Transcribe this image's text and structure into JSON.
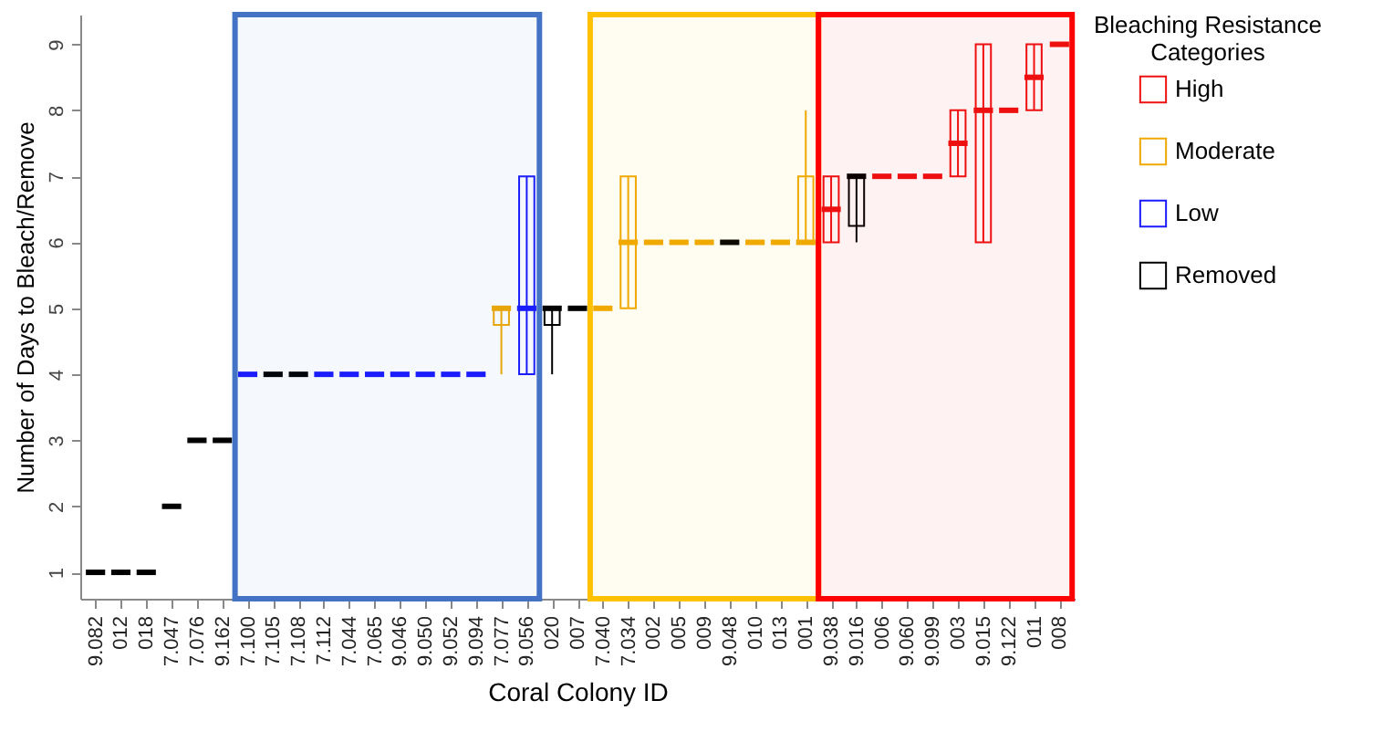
{
  "chart_data": {
    "type": "box",
    "xlabel": "Coral Colony ID",
    "ylabel": "Number of Days to Bleach/Remove",
    "legend_title": "Bleaching Resistance Categories",
    "legend": "right",
    "grid": false,
    "categories": [
      "9.082",
      "012",
      "018",
      "7.047",
      "7.076",
      "9.162",
      "7.100",
      "7.105",
      "7.108",
      "7.112",
      "7.044",
      "7.065",
      "9.046",
      "9.050",
      "9.052",
      "9.094",
      "7.077",
      "9.056",
      "020",
      "007",
      "7.040",
      "7.034",
      "002",
      "005",
      "009",
      "9.048",
      "010",
      "013",
      "001",
      "9.038",
      "9.016",
      "006",
      "9.060",
      "9.099",
      "003",
      "9.015",
      "9.122",
      "011",
      "008"
    ],
    "ylim": [
      0.6,
      9.45
    ],
    "yticks": [
      1,
      2,
      3,
      4,
      5,
      6,
      7,
      8,
      9
    ],
    "series": [
      {
        "name": "High",
        "color": "#ee1111",
        "boxes": [
          null,
          null,
          null,
          null,
          null,
          null,
          null,
          null,
          null,
          null,
          null,
          null,
          null,
          null,
          null,
          null,
          null,
          null,
          null,
          null,
          null,
          null,
          null,
          null,
          null,
          null,
          null,
          null,
          null,
          {
            "low": 6,
            "q1": 6,
            "median": 6.5,
            "q3": 7,
            "high": 7
          },
          null,
          {
            "low": 7,
            "q1": 7,
            "median": 7,
            "q3": 7,
            "high": 7
          },
          {
            "low": 7,
            "q1": 7,
            "median": 7,
            "q3": 7,
            "high": 7
          },
          {
            "low": 7,
            "q1": 7,
            "median": 7,
            "q3": 7,
            "high": 7
          },
          {
            "low": 7,
            "q1": 7,
            "median": 7.5,
            "q3": 8,
            "high": 8
          },
          {
            "low": 6,
            "q1": 6,
            "median": 8,
            "q3": 9,
            "high": 9
          },
          {
            "low": 8,
            "q1": 8,
            "median": 8,
            "q3": 8,
            "high": 8
          },
          {
            "low": 8,
            "q1": 8,
            "median": 8.5,
            "q3": 9,
            "high": 9
          },
          {
            "low": 9,
            "q1": 9,
            "median": 9,
            "q3": 9,
            "high": 9
          }
        ]
      },
      {
        "name": "Moderate",
        "color": "#f0a800",
        "boxes": [
          null,
          null,
          null,
          null,
          null,
          null,
          null,
          null,
          null,
          null,
          null,
          null,
          null,
          null,
          null,
          null,
          {
            "low": 4,
            "q1": 4.75,
            "median": 5,
            "q3": 5,
            "high": 5
          },
          null,
          null,
          null,
          {
            "low": 5,
            "q1": 5,
            "median": 5,
            "q3": 5,
            "high": 5
          },
          {
            "low": 5,
            "q1": 5,
            "median": 6,
            "q3": 7,
            "high": 7
          },
          {
            "low": 6,
            "q1": 6,
            "median": 6,
            "q3": 6,
            "high": 6
          },
          {
            "low": 6,
            "q1": 6,
            "median": 6,
            "q3": 6,
            "high": 6
          },
          {
            "low": 6,
            "q1": 6,
            "median": 6,
            "q3": 6,
            "high": 6
          },
          null,
          {
            "low": 6,
            "q1": 6,
            "median": 6,
            "q3": 6,
            "high": 6
          },
          {
            "low": 6,
            "q1": 6,
            "median": 6,
            "q3": 6,
            "high": 6
          },
          {
            "low": 6,
            "q1": 6,
            "median": 6,
            "q3": 7,
            "high": 8
          },
          null,
          null,
          null,
          null,
          null,
          null,
          null,
          null,
          null,
          null
        ]
      },
      {
        "name": "Low",
        "color": "#1a1aff",
        "boxes": [
          null,
          null,
          null,
          null,
          null,
          null,
          {
            "low": 4,
            "q1": 4,
            "median": 4,
            "q3": 4,
            "high": 4
          },
          null,
          null,
          {
            "low": 4,
            "q1": 4,
            "median": 4,
            "q3": 4,
            "high": 4
          },
          {
            "low": 4,
            "q1": 4,
            "median": 4,
            "q3": 4,
            "high": 4
          },
          {
            "low": 4,
            "q1": 4,
            "median": 4,
            "q3": 4,
            "high": 4
          },
          {
            "low": 4,
            "q1": 4,
            "median": 4,
            "q3": 4,
            "high": 4
          },
          {
            "low": 4,
            "q1": 4,
            "median": 4,
            "q3": 4,
            "high": 4
          },
          {
            "low": 4,
            "q1": 4,
            "median": 4,
            "q3": 4,
            "high": 4
          },
          {
            "low": 4,
            "q1": 4,
            "median": 4,
            "q3": 4,
            "high": 4
          },
          null,
          {
            "low": 4,
            "q1": 4,
            "median": 5,
            "q3": 7,
            "high": 7
          },
          null,
          null,
          null,
          null,
          null,
          null,
          null,
          null,
          null,
          null,
          null,
          null,
          null,
          null,
          null,
          null,
          null,
          null,
          null,
          null,
          null
        ]
      },
      {
        "name": "Removed",
        "color": "#000000",
        "boxes": [
          {
            "low": 1,
            "q1": 1,
            "median": 1,
            "q3": 1,
            "high": 1
          },
          {
            "low": 1,
            "q1": 1,
            "median": 1,
            "q3": 1,
            "high": 1
          },
          {
            "low": 1,
            "q1": 1,
            "median": 1,
            "q3": 1,
            "high": 1
          },
          {
            "low": 2,
            "q1": 2,
            "median": 2,
            "q3": 2,
            "high": 2
          },
          {
            "low": 3,
            "q1": 3,
            "median": 3,
            "q3": 3,
            "high": 3
          },
          {
            "low": 3,
            "q1": 3,
            "median": 3,
            "q3": 3,
            "high": 3
          },
          null,
          {
            "low": 4,
            "q1": 4,
            "median": 4,
            "q3": 4,
            "high": 4
          },
          {
            "low": 4,
            "q1": 4,
            "median": 4,
            "q3": 4,
            "high": 4
          },
          null,
          null,
          null,
          null,
          null,
          null,
          null,
          null,
          null,
          {
            "low": 4,
            "q1": 4.75,
            "median": 5,
            "q3": 5,
            "high": 5
          },
          {
            "low": 5,
            "q1": 5,
            "median": 5,
            "q3": 5,
            "high": 5
          },
          null,
          null,
          null,
          null,
          null,
          {
            "low": 6,
            "q1": 6,
            "median": 6,
            "q3": 6,
            "high": 6
          },
          null,
          null,
          null,
          null,
          {
            "low": 6,
            "q1": 6.25,
            "median": 7,
            "q3": 7,
            "high": 7
          },
          null,
          null,
          null,
          null,
          null,
          null,
          null,
          null
        ]
      }
    ],
    "bands": [
      {
        "axis": "x",
        "from": "7.100",
        "to": "9.056",
        "label": null,
        "color": "#4472c4"
      },
      {
        "axis": "x",
        "from": "7.040",
        "to": "001",
        "label": null,
        "color": "#ffc000"
      },
      {
        "axis": "x",
        "from": "9.038",
        "to": "008",
        "label": null,
        "color": "#ff0000"
      }
    ]
  }
}
